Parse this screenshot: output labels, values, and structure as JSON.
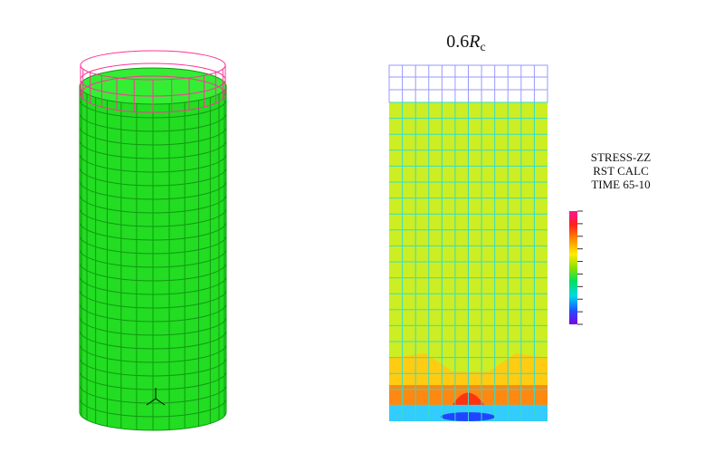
{
  "figure": {
    "title": {
      "prefix": "0.6",
      "symbol": "R",
      "subscript": "c"
    },
    "legend": {
      "lines": [
        "STRESS-ZZ",
        "RST CALC",
        "TIME 65-10"
      ]
    }
  }
}
